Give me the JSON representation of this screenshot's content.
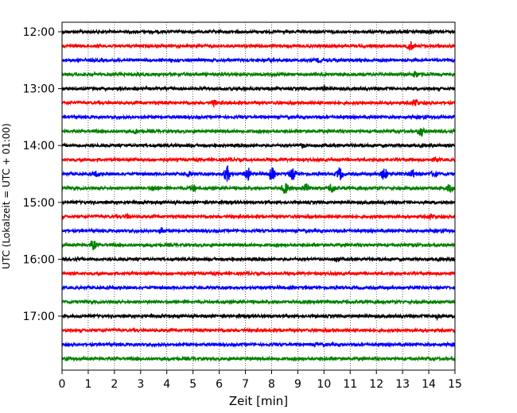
{
  "chart_data": {
    "type": "line",
    "title": "",
    "xlabel": "Zeit  [min]",
    "ylabel": "UTC (Lokalzeit = UTC + 01:00)",
    "xlim": [
      0,
      15
    ],
    "x_ticks": [
      0,
      1,
      2,
      3,
      4,
      5,
      6,
      7,
      8,
      9,
      10,
      11,
      12,
      13,
      14,
      15
    ],
    "x_grid": "vertical dotted lines at every minute",
    "y_tick_labels": [
      "12:00",
      "13:00",
      "14:00",
      "15:00",
      "16:00",
      "17:00"
    ],
    "trace_interval_min": 15,
    "trace_colors": [
      "#000000",
      "#ff0000",
      "#0000ff",
      "#008000"
    ],
    "traces": [
      {
        "start": "12:00",
        "color": "#000000",
        "events": [
          [
            14,
            0.4
          ]
        ]
      },
      {
        "start": "12:15",
        "color": "#ff0000",
        "events": [
          [
            13.3,
            0.9
          ]
        ]
      },
      {
        "start": "12:30",
        "color": "#0000ff",
        "events": [
          [
            9.8,
            0.3
          ]
        ]
      },
      {
        "start": "12:45",
        "color": "#008000",
        "events": [
          [
            3,
            0.3
          ],
          [
            13.5,
            0.6
          ]
        ]
      },
      {
        "start": "13:00",
        "color": "#000000",
        "events": [
          [
            10,
            0.3
          ]
        ]
      },
      {
        "start": "13:15",
        "color": "#ff0000",
        "events": [
          [
            5.8,
            0.5
          ],
          [
            13.5,
            0.8
          ]
        ]
      },
      {
        "start": "13:30",
        "color": "#0000ff",
        "events": []
      },
      {
        "start": "13:45",
        "color": "#008000",
        "events": [
          [
            2.8,
            0.4
          ],
          [
            13.7,
            0.9
          ]
        ]
      },
      {
        "start": "14:00",
        "color": "#000000",
        "events": [
          [
            9.2,
            0.3
          ]
        ]
      },
      {
        "start": "14:15",
        "color": "#ff0000",
        "events": [
          [
            14.3,
            0.3
          ]
        ]
      },
      {
        "start": "14:30",
        "color": "#0000ff",
        "events": [
          [
            1.3,
            0.4
          ],
          [
            4.8,
            0.5
          ],
          [
            6.3,
            1.7
          ],
          [
            7.1,
            1.3
          ],
          [
            8,
            1.4
          ],
          [
            8.8,
            1.2
          ],
          [
            10.6,
            1.3
          ],
          [
            12.3,
            1.3
          ],
          [
            13.4,
            0.8
          ],
          [
            14.2,
            0.6
          ]
        ]
      },
      {
        "start": "14:45",
        "color": "#008000",
        "events": [
          [
            3.5,
            0.5
          ],
          [
            5,
            0.7
          ],
          [
            8.5,
            1.2
          ],
          [
            9.3,
            0.8
          ],
          [
            10.3,
            1.1
          ],
          [
            14.8,
            0.8
          ]
        ]
      },
      {
        "start": "15:00",
        "color": "#000000",
        "events": []
      },
      {
        "start": "15:15",
        "color": "#ff0000",
        "events": [
          [
            2.5,
            0.3
          ],
          [
            14.1,
            0.4
          ]
        ]
      },
      {
        "start": "15:30",
        "color": "#0000ff",
        "events": [
          [
            3.8,
            0.5
          ]
        ]
      },
      {
        "start": "15:45",
        "color": "#008000",
        "events": [
          [
            1.2,
            0.9
          ],
          [
            13.5,
            0.3
          ]
        ]
      },
      {
        "start": "16:00",
        "color": "#000000",
        "events": [
          [
            10.5,
            0.3
          ],
          [
            15,
            0.3
          ]
        ]
      },
      {
        "start": "16:15",
        "color": "#ff0000",
        "events": []
      },
      {
        "start": "16:30",
        "color": "#0000ff",
        "events": []
      },
      {
        "start": "16:45",
        "color": "#008000",
        "events": []
      },
      {
        "start": "17:00",
        "color": "#000000",
        "events": [
          [
            14.3,
            0.4
          ]
        ]
      },
      {
        "start": "17:15",
        "color": "#ff0000",
        "events": []
      },
      {
        "start": "17:30",
        "color": "#0000ff",
        "events": [
          [
            9.7,
            0.2
          ]
        ]
      },
      {
        "start": "17:45",
        "color": "#008000",
        "events": []
      }
    ]
  }
}
